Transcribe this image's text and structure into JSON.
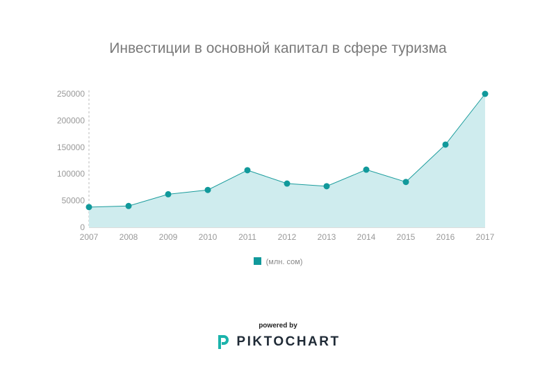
{
  "chart_data": {
    "type": "area",
    "title": "Инвестиции в основной капитал в сфере туризма",
    "categories": [
      "2007",
      "2008",
      "2009",
      "2010",
      "2011",
      "2012",
      "2013",
      "2014",
      "2015",
      "2016",
      "2017"
    ],
    "series": [
      {
        "name": "(млн. сом)",
        "values": [
          38000,
          40000,
          62000,
          70000,
          107000,
          82000,
          77000,
          108000,
          85000,
          155000,
          250000
        ]
      }
    ],
    "ylim": [
      0,
      250000
    ],
    "yticks": [
      "250000",
      "200000",
      "150000",
      "100000",
      "50000",
      "0"
    ],
    "grid": false,
    "legend": "bottom",
    "colors": {
      "line": "#1a9c9c",
      "fill": "#cfecee",
      "marker": "#11999b"
    }
  },
  "footer": {
    "powered": "powered by",
    "brand": "PIKTOCHART"
  }
}
